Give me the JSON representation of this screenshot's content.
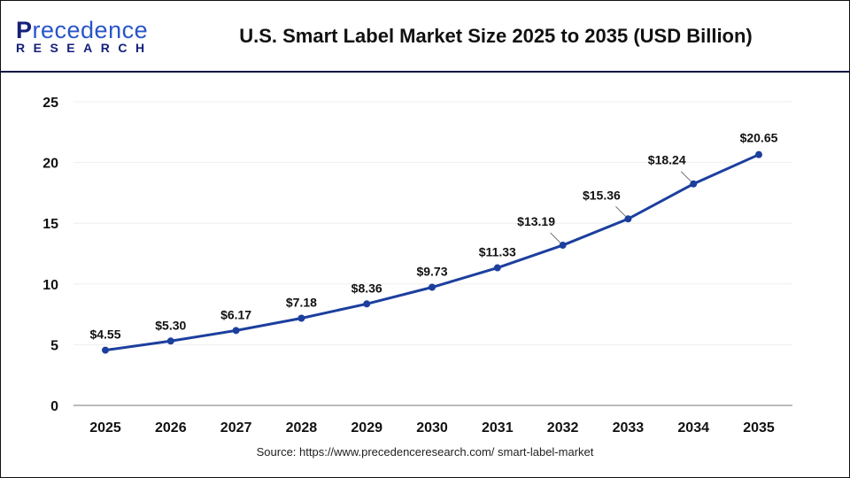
{
  "header": {
    "logo_word": "Precedence",
    "logo_sub": "RESEARCH",
    "title": "U.S. Smart Label Market Size 2025 to 2035 (USD Billion)"
  },
  "source": "Source: https://www.precedenceresearch.com/ smart-label-market",
  "chart_data": {
    "type": "line",
    "title": "U.S. Smart Label Market Size 2025 to 2035 (USD Billion)",
    "categories": [
      "2025",
      "2026",
      "2027",
      "2028",
      "2029",
      "2030",
      "2031",
      "2032",
      "2033",
      "2034",
      "2035"
    ],
    "values": [
      4.55,
      5.3,
      6.17,
      7.18,
      8.36,
      9.73,
      11.33,
      13.19,
      15.36,
      18.24,
      20.65
    ],
    "data_labels": [
      "$4.55",
      "$5.30",
      "$6.17",
      "$7.18",
      "$8.36",
      "$9.73",
      "$11.33",
      "$13.19",
      "$15.36",
      "$18.24",
      "$20.65"
    ],
    "yticks": [
      0,
      5,
      10,
      15,
      20,
      25
    ],
    "ylim": [
      0,
      25
    ],
    "grid": true,
    "line_color": "#1c3f9e",
    "xlabel": "",
    "ylabel": ""
  }
}
